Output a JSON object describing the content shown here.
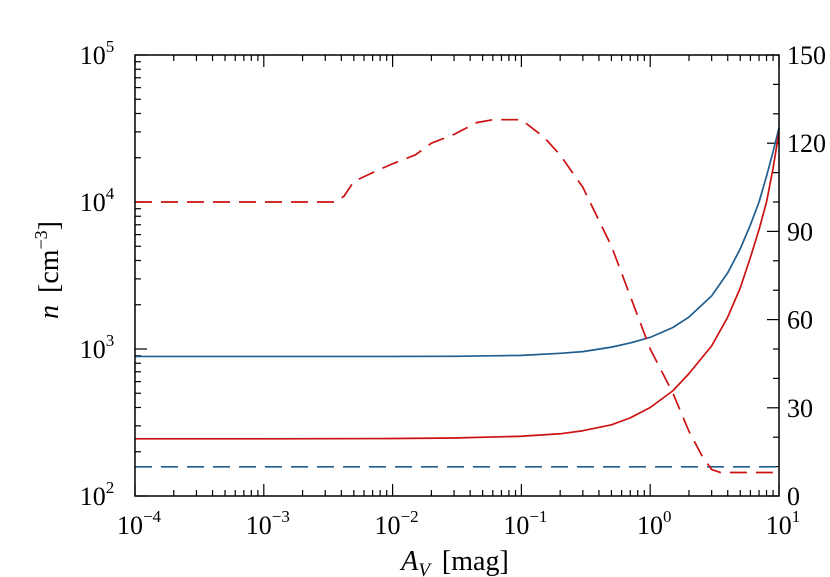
{
  "chart_data": {
    "type": "line",
    "x_scale": "log",
    "y_scale": "log",
    "xlim": [
      0.0001,
      10
    ],
    "ylim": [
      100,
      100000
    ],
    "y2lim": [
      0,
      150
    ],
    "x_ticks": [
      {
        "value": 0.0001,
        "base": "10",
        "exp": "−4"
      },
      {
        "value": 0.001,
        "base": "10",
        "exp": "−3"
      },
      {
        "value": 0.01,
        "base": "10",
        "exp": "−2"
      },
      {
        "value": 0.1,
        "base": "10",
        "exp": "−1"
      },
      {
        "value": 1,
        "base": "10",
        "exp": "0"
      },
      {
        "value": 10,
        "base": "10",
        "exp": "1"
      }
    ],
    "y_ticks": [
      {
        "value": 100,
        "base": "10",
        "exp": "2"
      },
      {
        "value": 1000,
        "base": "10",
        "exp": "3"
      },
      {
        "value": 10000,
        "base": "10",
        "exp": "4"
      },
      {
        "value": 100000,
        "base": "10",
        "exp": "5"
      }
    ],
    "y2_ticks": [
      {
        "value": 0,
        "label": "0"
      },
      {
        "value": 30,
        "label": "30"
      },
      {
        "value": 60,
        "label": "60"
      },
      {
        "value": 90,
        "label": "90"
      },
      {
        "value": 120,
        "label": "120"
      },
      {
        "value": 150,
        "label": "150"
      }
    ],
    "xlabel": {
      "main": "A",
      "sub": "V",
      "unit": "[mag]"
    },
    "ylabel": {
      "main": "n",
      "unit_pre": "[cm",
      "unit_exp": "−3",
      "unit_post": "]"
    },
    "series": [
      {
        "axis": "left",
        "color": "#1f5e8f",
        "dash": "solid",
        "points": [
          [
            0.0001,
            890
          ],
          [
            0.001,
            890
          ],
          [
            0.01,
            890
          ],
          [
            0.03,
            892
          ],
          [
            0.1,
            905
          ],
          [
            0.2,
            935
          ],
          [
            0.3,
            960
          ],
          [
            0.5,
            1030
          ],
          [
            0.7,
            1100
          ],
          [
            1.0,
            1200
          ],
          [
            1.5,
            1400
          ],
          [
            2.0,
            1650
          ],
          [
            3.0,
            2300
          ],
          [
            4.0,
            3300
          ],
          [
            5.0,
            4800
          ],
          [
            6.0,
            7000
          ],
          [
            7.0,
            10000
          ],
          [
            8.0,
            15000
          ],
          [
            9.0,
            22000
          ],
          [
            10.0,
            32000
          ]
        ]
      },
      {
        "axis": "left",
        "color": "#cc1111",
        "dash": "solid",
        "points": [
          [
            0.0001,
            245
          ],
          [
            0.001,
            245
          ],
          [
            0.01,
            246
          ],
          [
            0.03,
            248
          ],
          [
            0.1,
            255
          ],
          [
            0.2,
            265
          ],
          [
            0.3,
            278
          ],
          [
            0.5,
            305
          ],
          [
            0.7,
            340
          ],
          [
            1.0,
            400
          ],
          [
            1.5,
            520
          ],
          [
            2.0,
            680
          ],
          [
            3.0,
            1050
          ],
          [
            4.0,
            1650
          ],
          [
            5.0,
            2600
          ],
          [
            6.0,
            4200
          ],
          [
            7.0,
            6500
          ],
          [
            8.0,
            10000
          ],
          [
            9.0,
            17000
          ],
          [
            10.0,
            30000
          ]
        ]
      },
      {
        "axis": "left",
        "color": "#1f5e8f",
        "dash": "dashed",
        "points": [
          [
            0.0001,
            158
          ],
          [
            10.0,
            158
          ]
        ]
      },
      {
        "axis": "right",
        "color": "#cc1111",
        "dash": "dashed",
        "points": [
          [
            0.0001,
            100
          ],
          [
            0.0036,
            100
          ],
          [
            0.0042,
            102
          ],
          [
            0.005,
            107
          ],
          [
            0.007,
            110
          ],
          [
            0.01,
            113
          ],
          [
            0.015,
            116
          ],
          [
            0.02,
            120
          ],
          [
            0.03,
            123
          ],
          [
            0.045,
            127
          ],
          [
            0.06,
            128
          ],
          [
            0.08,
            128
          ],
          [
            0.1,
            128
          ],
          [
            0.15,
            122
          ],
          [
            0.2,
            116
          ],
          [
            0.3,
            105
          ],
          [
            0.5,
            85
          ],
          [
            0.7,
            68
          ],
          [
            1.0,
            50
          ],
          [
            1.5,
            35
          ],
          [
            2.0,
            22
          ],
          [
            2.5,
            14
          ],
          [
            3.0,
            9
          ],
          [
            3.5,
            8
          ],
          [
            10.0,
            8
          ]
        ]
      }
    ]
  }
}
